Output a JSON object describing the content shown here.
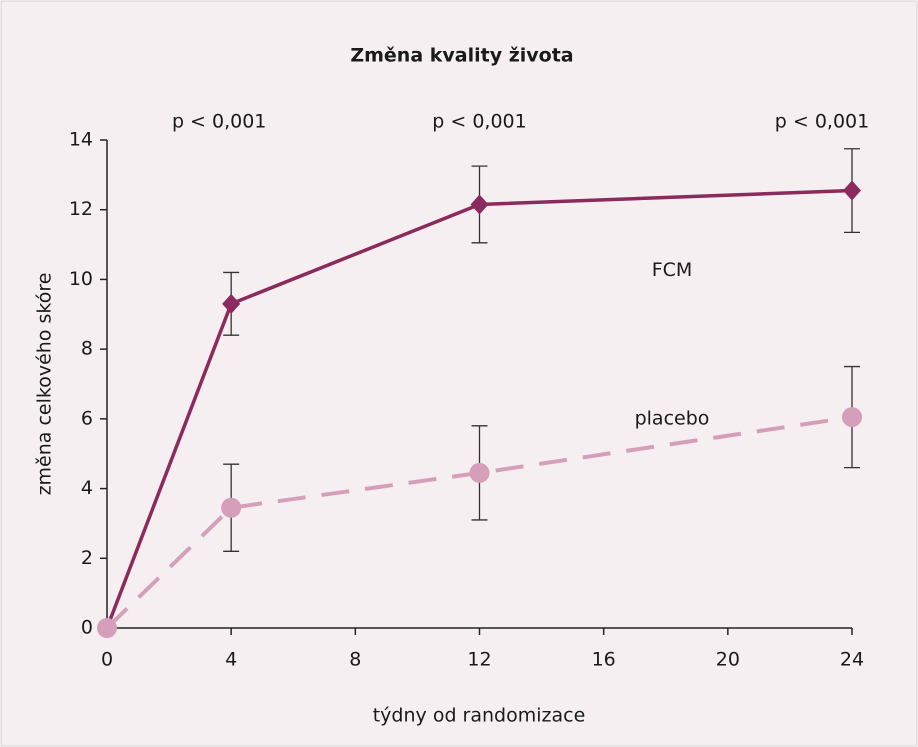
{
  "chart_data": {
    "type": "line",
    "title": "Změna kvality života",
    "x_label": "týdny od randomizace",
    "y_label": "změna celkového skóre",
    "x": [
      0,
      4,
      12,
      24
    ],
    "series": [
      {
        "name": "FCM",
        "color": "#8b2a5c",
        "marker": "diamond",
        "dashed": false,
        "values": [
          0,
          9.3,
          12.15,
          12.55
        ],
        "errors": [
          null,
          0.9,
          1.1,
          1.2
        ]
      },
      {
        "name": "placebo",
        "color": "#d69fb9",
        "marker": "circle",
        "dashed": true,
        "values": [
          0,
          3.45,
          4.45,
          6.05
        ],
        "errors": [
          null,
          1.25,
          1.35,
          1.45
        ]
      }
    ],
    "annotations": [
      "p < 0,001",
      "p < 0,001",
      "p < 0,001"
    ],
    "xlim": [
      0,
      24
    ],
    "xticks": [
      0,
      4,
      8,
      12,
      16,
      20,
      24
    ],
    "ylim": [
      0,
      14
    ],
    "yticks": [
      0,
      2,
      4,
      6,
      8,
      10,
      12,
      14
    ],
    "grid": false
  }
}
